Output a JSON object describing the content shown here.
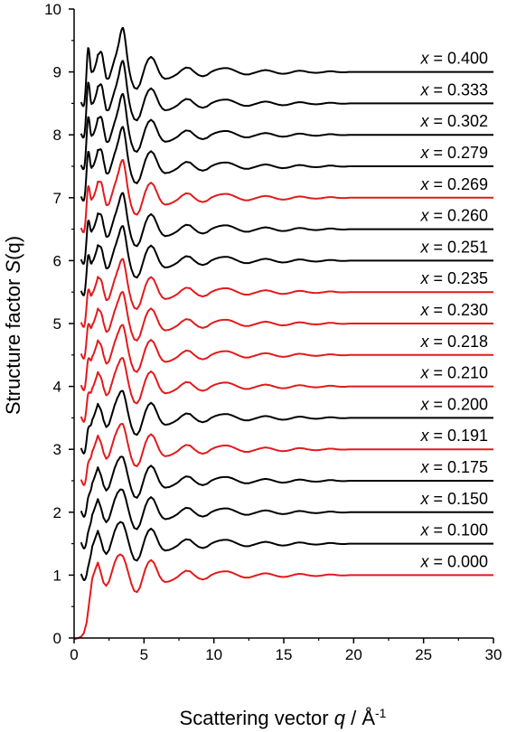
{
  "chart_data": {
    "type": "line",
    "xlabel": {
      "before": "Scattering vector ",
      "var": "q",
      "after": " / Å",
      "sup": "-1"
    },
    "ylabel": {
      "before": "Structure factor ",
      "var": "S",
      "after": "(q)"
    },
    "xlim": [
      0,
      30
    ],
    "ylim": [
      0,
      10
    ],
    "xticks": [
      "0",
      "5",
      "10",
      "15",
      "20",
      "25",
      "30"
    ],
    "yticks": [
      "0",
      "1",
      "2",
      "3",
      "4",
      "5",
      "6",
      "7",
      "8",
      "9",
      "10"
    ],
    "label_var": "x",
    "label_eq": " = ",
    "colors": {
      "black": "#000000",
      "red": "#e31a1c",
      "axis": "#000000"
    },
    "series": [
      {
        "name": "0.000",
        "offset": 0.0,
        "color": "red"
      },
      {
        "name": "0.100",
        "offset": 0.5,
        "color": "black"
      },
      {
        "name": "0.150",
        "offset": 1.0,
        "color": "black"
      },
      {
        "name": "0.175",
        "offset": 1.5,
        "color": "black"
      },
      {
        "name": "0.191",
        "offset": 2.0,
        "color": "red"
      },
      {
        "name": "0.200",
        "offset": 2.5,
        "color": "black"
      },
      {
        "name": "0.210",
        "offset": 3.0,
        "color": "red"
      },
      {
        "name": "0.218",
        "offset": 3.5,
        "color": "red"
      },
      {
        "name": "0.230",
        "offset": 4.0,
        "color": "red"
      },
      {
        "name": "0.235",
        "offset": 4.5,
        "color": "red"
      },
      {
        "name": "0.251",
        "offset": 5.0,
        "color": "black"
      },
      {
        "name": "0.260",
        "offset": 5.5,
        "color": "black"
      },
      {
        "name": "0.269",
        "offset": 6.0,
        "color": "red"
      },
      {
        "name": "0.279",
        "offset": 6.5,
        "color": "black"
      },
      {
        "name": "0.302",
        "offset": 7.0,
        "color": "black"
      },
      {
        "name": "0.333",
        "offset": 7.5,
        "color": "black"
      },
      {
        "name": "0.400",
        "offset": 8.0,
        "color": "black"
      }
    ],
    "base_curve": {
      "q": [
        0,
        0.3,
        0.5,
        0.7,
        0.9,
        1.1,
        1.3,
        1.5,
        1.7,
        1.9,
        2.1,
        2.3,
        2.5,
        2.7,
        2.9,
        3.1,
        3.3,
        3.5,
        3.7,
        3.9,
        4.1,
        4.3,
        4.5,
        4.7,
        4.9,
        5.1,
        5.3,
        5.5,
        5.7,
        5.9,
        6.1,
        6.3,
        6.5,
        6.8,
        7.1,
        7.4,
        7.7,
        8.0,
        8.3,
        8.6,
        8.9,
        9.2,
        9.5,
        9.8,
        10.1,
        10.4,
        10.7,
        11.0,
        11.3,
        11.6,
        11.9,
        12.2,
        12.5,
        12.8,
        13.1,
        13.4,
        13.7,
        14.0,
        14.3,
        14.6,
        14.9,
        15.2,
        15.5,
        15.8,
        16.1,
        16.4,
        16.7,
        17.0,
        17.3,
        17.6,
        17.9,
        18.2,
        18.5,
        18.8,
        19.1,
        19.4,
        19.7,
        20.0,
        21.0,
        22.0,
        23.0,
        24.0,
        25.0,
        26.0,
        27.0,
        28.0,
        29.0,
        30.0
      ],
      "s": [
        -0.02,
        0.0,
        0.02,
        0.08,
        0.25,
        0.6,
        0.95,
        1.08,
        1.2,
        1.05,
        0.88,
        0.83,
        0.9,
        1.05,
        1.2,
        1.3,
        1.33,
        1.3,
        1.18,
        1.02,
        0.86,
        0.75,
        0.73,
        0.8,
        0.95,
        1.1,
        1.2,
        1.24,
        1.2,
        1.1,
        0.99,
        0.92,
        0.89,
        0.9,
        0.93,
        0.97,
        1.03,
        1.07,
        1.06,
        1.0,
        0.95,
        0.93,
        0.95,
        1.0,
        1.03,
        1.05,
        1.06,
        1.06,
        1.04,
        1.01,
        0.98,
        0.96,
        0.96,
        0.98,
        1.0,
        1.02,
        1.03,
        1.02,
        1.0,
        0.98,
        0.97,
        0.975,
        0.99,
        1.01,
        1.02,
        1.015,
        1.0,
        0.99,
        0.985,
        0.99,
        1.0,
        1.01,
        1.01,
        1.0,
        0.995,
        0.995,
        1.0,
        1.0,
        1.0,
        1.0,
        1.0,
        1.0,
        1.0,
        1.0,
        1.0,
        1.0,
        1.0,
        1.0
      ]
    }
  }
}
